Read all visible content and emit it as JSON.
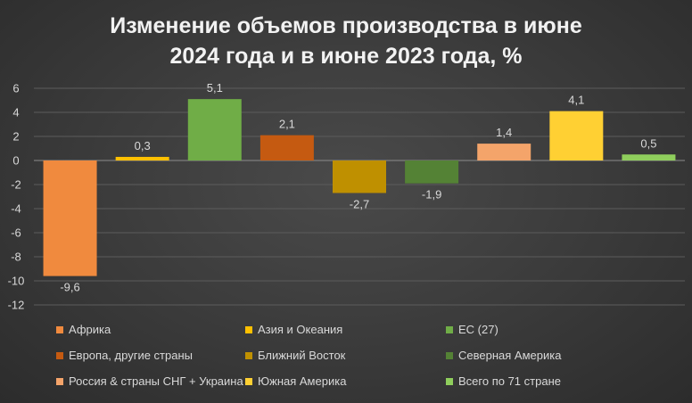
{
  "chart_data": {
    "type": "bar",
    "title_line1": "Изменение объемов производства в июне",
    "title_line2": "2024 года и в июне 2023 года, %",
    "ylim": [
      -12,
      6
    ],
    "yticks": [
      6,
      4,
      2,
      0,
      -2,
      -4,
      -6,
      -8,
      -10,
      -12
    ],
    "grid": true,
    "legend_position": "bottom",
    "series": [
      {
        "name": "Африка",
        "value": -9.6,
        "label": "-9,6",
        "color": "#f08a3e"
      },
      {
        "name": "Азия и Океания",
        "value": 0.3,
        "label": "0,3",
        "color": "#ffc000"
      },
      {
        "name": "ЕС (27)",
        "value": 5.1,
        "label": "5,1",
        "color": "#70ad47"
      },
      {
        "name": "Европа, другие страны",
        "value": 2.1,
        "label": "2,1",
        "color": "#c55a11"
      },
      {
        "name": "Ближний Восток",
        "value": -2.7,
        "label": "-2,7",
        "color": "#bf9000"
      },
      {
        "name": "Северная Америка",
        "value": -1.9,
        "label": "-1,9",
        "color": "#548235"
      },
      {
        "name": "Россия & страны СНГ + Украина",
        "value": 1.4,
        "label": "1,4",
        "color": "#f4a46a"
      },
      {
        "name": "Южная Америка",
        "value": 4.1,
        "label": "4,1",
        "color": "#ffd033"
      },
      {
        "name": "Всего по 71 стране",
        "value": 0.5,
        "label": "0,5",
        "color": "#8fce5c"
      }
    ]
  }
}
